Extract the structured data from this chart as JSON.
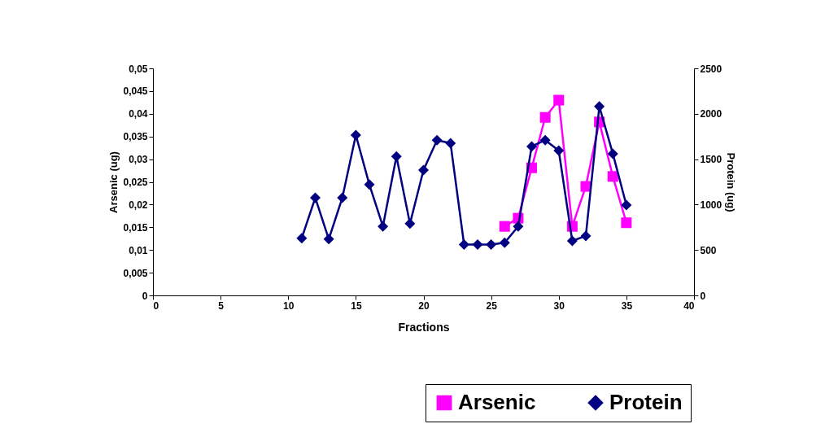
{
  "chart_data": {
    "type": "line",
    "xlabel": "Fractions",
    "ylabel": "Arsenic (ug)",
    "y2label": "Protein (ug)",
    "xlim": [
      0,
      40
    ],
    "xticks": [
      0,
      5,
      10,
      15,
      20,
      25,
      30,
      35,
      40
    ],
    "ylim": [
      0,
      0.05
    ],
    "yticks": [
      {
        "value": 0,
        "label": "0"
      },
      {
        "value": 0.005,
        "label": "0,005"
      },
      {
        "value": 0.01,
        "label": "0,01"
      },
      {
        "value": 0.015,
        "label": "0,015"
      },
      {
        "value": 0.02,
        "label": "0,02"
      },
      {
        "value": 0.025,
        "label": "0,025"
      },
      {
        "value": 0.03,
        "label": "0,03"
      },
      {
        "value": 0.035,
        "label": "0,035"
      },
      {
        "value": 0.04,
        "label": "0,04"
      },
      {
        "value": 0.045,
        "label": "0,045"
      },
      {
        "value": 0.05,
        "label": "0,05"
      }
    ],
    "y2lim": [
      0,
      2500
    ],
    "y2ticks": [
      0,
      500,
      1000,
      1500,
      2000,
      2500
    ],
    "grid": false,
    "legend": "bottom right",
    "series": [
      {
        "name": "Arsenic",
        "color": "#ff00ff",
        "marker": "square",
        "x": [
          26,
          27,
          28,
          29,
          30,
          31,
          32,
          33,
          34,
          35
        ],
        "values": [
          0.0152,
          0.017,
          0.0281,
          0.0392,
          0.043,
          0.0152,
          0.024,
          0.0382,
          0.0262,
          0.016
        ]
      },
      {
        "name": "Protein",
        "color": "#000080",
        "marker": "diamond",
        "axis": "y2",
        "x": [
          11,
          12,
          13,
          14,
          15,
          16,
          17,
          18,
          19,
          20,
          21,
          22,
          23,
          24,
          25,
          26,
          27,
          28,
          29,
          30,
          31,
          32,
          33,
          34,
          35
        ],
        "values": [
          630,
          1075,
          620,
          1075,
          1765,
          1220,
          760,
          1530,
          790,
          1380,
          1710,
          1675,
          560,
          560,
          560,
          580,
          760,
          1640,
          1710,
          1595,
          600,
          655,
          2080,
          1560,
          995
        ]
      }
    ]
  }
}
